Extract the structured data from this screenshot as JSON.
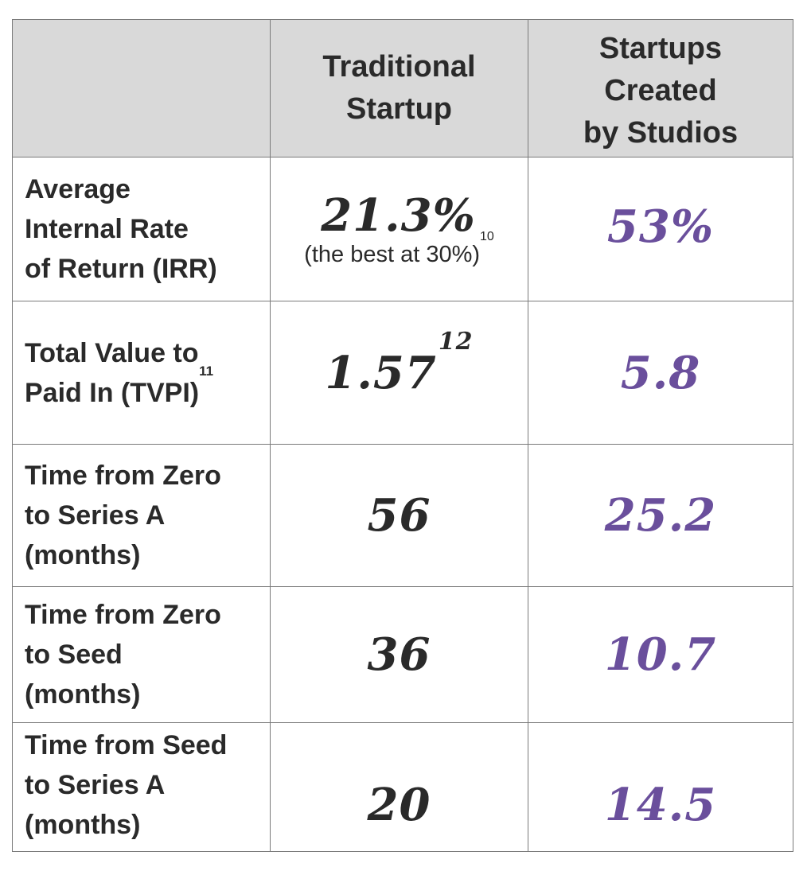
{
  "chart_data": {
    "type": "table",
    "columns": [
      "",
      "Traditional\nStartup",
      "Startups\nCreated\nby Studios"
    ],
    "rows": [
      {
        "label": "Average\nInternal Rate\nof Return (IRR)",
        "label_sup": "",
        "traditional": "21.3%",
        "traditional_sup": "",
        "traditional_note": "(the best at 30%)",
        "traditional_note_sup": "10",
        "studios": "53%"
      },
      {
        "label": "Total Value to\nPaid In (TVPI)",
        "label_sup": "11",
        "traditional": "1.57",
        "traditional_sup": "12",
        "traditional_note": "",
        "traditional_note_sup": "",
        "studios": "5.8"
      },
      {
        "label": "Time from Zero\nto Series A\n(months)",
        "label_sup": "",
        "traditional": "56",
        "traditional_sup": "",
        "traditional_note": "",
        "traditional_note_sup": "",
        "studios": "25.2"
      },
      {
        "label": "Time from Zero\nto Seed\n(months)",
        "label_sup": "",
        "traditional": "36",
        "traditional_sup": "",
        "traditional_note": "",
        "traditional_note_sup": "",
        "studios": "10.7"
      },
      {
        "label": "Time from Seed\nto Series A\n(months)",
        "label_sup": "",
        "traditional": "20",
        "traditional_sup": "",
        "traditional_note": "",
        "traditional_note_sup": "",
        "studios": "14.5"
      }
    ]
  },
  "colors": {
    "header_bg": "#d9d9d9",
    "text": "#2a2a2a",
    "studio_accent": "#6a4f9c",
    "border": "#7a7a7a"
  }
}
